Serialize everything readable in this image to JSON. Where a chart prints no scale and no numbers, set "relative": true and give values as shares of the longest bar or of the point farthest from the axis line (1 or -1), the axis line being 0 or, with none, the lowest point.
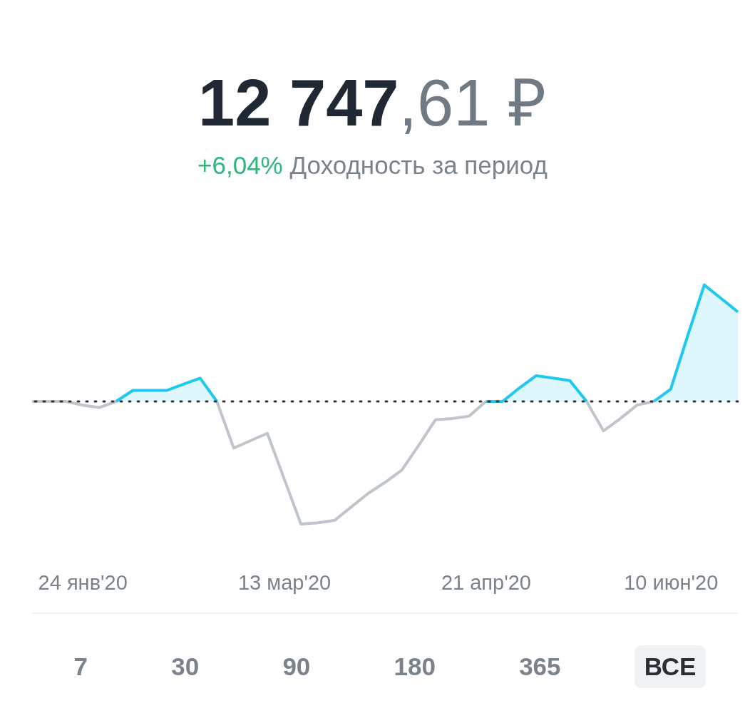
{
  "chart_data": {
    "type": "line",
    "title": "12 747,61 ₽",
    "subtitle": "+6,04% Доходность за период",
    "relative": true,
    "categories": [
      null,
      null,
      null,
      "24 янв'20",
      null,
      null,
      null,
      null,
      null,
      null,
      null,
      null,
      null,
      null,
      null,
      "13 мар'20",
      null,
      null,
      null,
      null,
      null,
      null,
      null,
      null,
      null,
      null,
      null,
      "21 апр'20",
      null,
      null,
      null,
      null,
      null,
      null,
      null,
      null,
      null,
      null,
      "10 июн'20",
      null,
      null,
      null,
      null
    ],
    "series": [
      {
        "color": "#c0c5cc",
        "values": [
          0,
          0,
          0,
          -0.03,
          -0.05,
          0,
          null,
          null,
          null,
          null,
          null,
          0,
          -0.38,
          -0.32,
          -0.26,
          -0.63,
          -1,
          -0.99,
          -0.97,
          -0.86,
          -0.75,
          -0.66,
          -0.56,
          -0.36,
          -0.15,
          -0.14,
          -0.12,
          0,
          null,
          null,
          null,
          null,
          null,
          0,
          -0.24,
          -0.14,
          -0.03,
          0,
          null,
          null,
          null,
          null,
          null
        ]
      },
      {
        "type": "area",
        "color": "#1ec8f0",
        "values": [
          null,
          null,
          null,
          null,
          null,
          0,
          0.09,
          0.09,
          0.09,
          0.14,
          0.19,
          0,
          null,
          null,
          null,
          null,
          null,
          null,
          null,
          null,
          null,
          null,
          null,
          null,
          null,
          null,
          null,
          0,
          0,
          0.11,
          0.21,
          0.19,
          0.17,
          0,
          null,
          null,
          null,
          0,
          0.1,
          0.53,
          0.95,
          0.84,
          0.73
        ]
      }
    ],
    "ref_lines": [
      {
        "axis": "y",
        "value": 0,
        "color": "#333333",
        "line_style": "dotted"
      }
    ],
    "annotations": [
      "7",
      "30",
      "90",
      "180",
      "365",
      "ВСЕ"
    ]
  }
}
